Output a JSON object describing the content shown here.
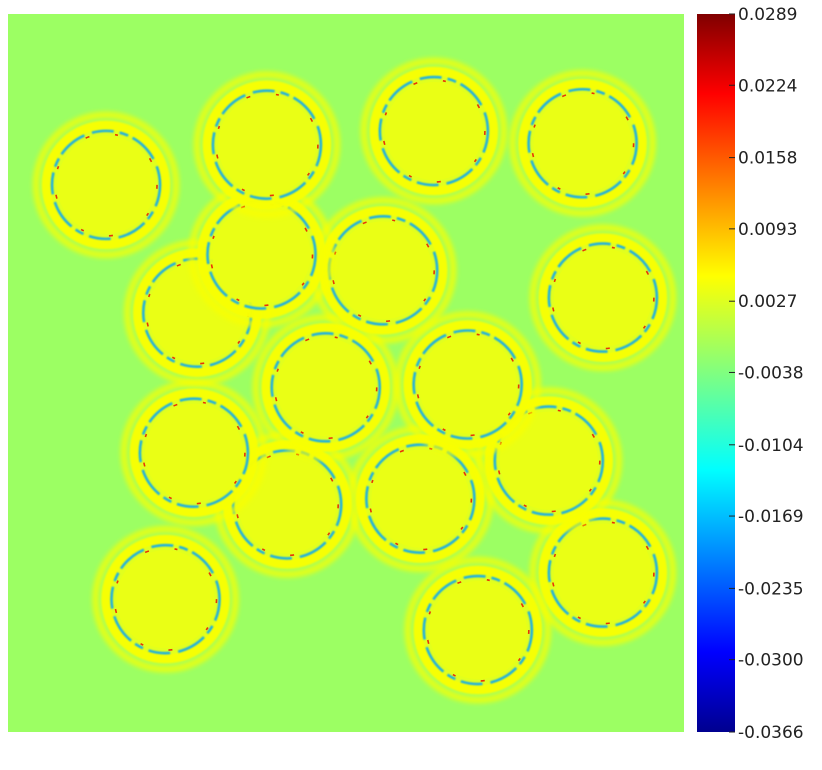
{
  "chart_data": {
    "type": "heatmap",
    "title": "",
    "xlabel": "",
    "ylabel": "",
    "colormap": "jet",
    "color_range": [
      -0.0366,
      0.0289
    ],
    "colorbar": {
      "position": "right",
      "tick_labels": [
        "0.0289",
        "0.0224",
        "0.0158",
        "0.0093",
        "0.0027",
        "-0.0038",
        "-0.0104",
        "-0.0169",
        "-0.0235",
        "-0.0300",
        "-0.0366"
      ],
      "tick_values": [
        0.0289,
        0.0224,
        0.0158,
        0.0093,
        0.0027,
        -0.0038,
        -0.0104,
        -0.0169,
        -0.0235,
        -0.03,
        -0.0366
      ]
    },
    "background_value": -0.002,
    "description_values": {
      "ring_interior": 0.003,
      "ring_band_outer": 0.004,
      "ring_edge_low": -0.018,
      "contact_high": 0.022
    },
    "rings": [
      {
        "id": 1,
        "cx": 0.233,
        "cy": 0.815
      },
      {
        "id": 2,
        "cx": 0.695,
        "cy": 0.858
      },
      {
        "id": 3,
        "cx": 0.88,
        "cy": 0.778
      },
      {
        "id": 4,
        "cx": 0.413,
        "cy": 0.683
      },
      {
        "id": 5,
        "cx": 0.61,
        "cy": 0.675
      },
      {
        "id": 6,
        "cx": 0.275,
        "cy": 0.611
      },
      {
        "id": 7,
        "cx": 0.8,
        "cy": 0.622
      },
      {
        "id": 8,
        "cx": 0.47,
        "cy": 0.52
      },
      {
        "id": 9,
        "cx": 0.68,
        "cy": 0.516
      },
      {
        "id": 10,
        "cx": 0.28,
        "cy": 0.416
      },
      {
        "id": 11,
        "cx": 0.555,
        "cy": 0.357
      },
      {
        "id": 12,
        "cx": 0.88,
        "cy": 0.395
      },
      {
        "id": 13,
        "cx": 0.375,
        "cy": 0.335
      },
      {
        "id": 14,
        "cx": 0.145,
        "cy": 0.238
      },
      {
        "id": 15,
        "cx": 0.383,
        "cy": 0.182
      },
      {
        "id": 16,
        "cx": 0.63,
        "cy": 0.163
      },
      {
        "id": 17,
        "cx": 0.85,
        "cy": 0.18
      }
    ]
  }
}
